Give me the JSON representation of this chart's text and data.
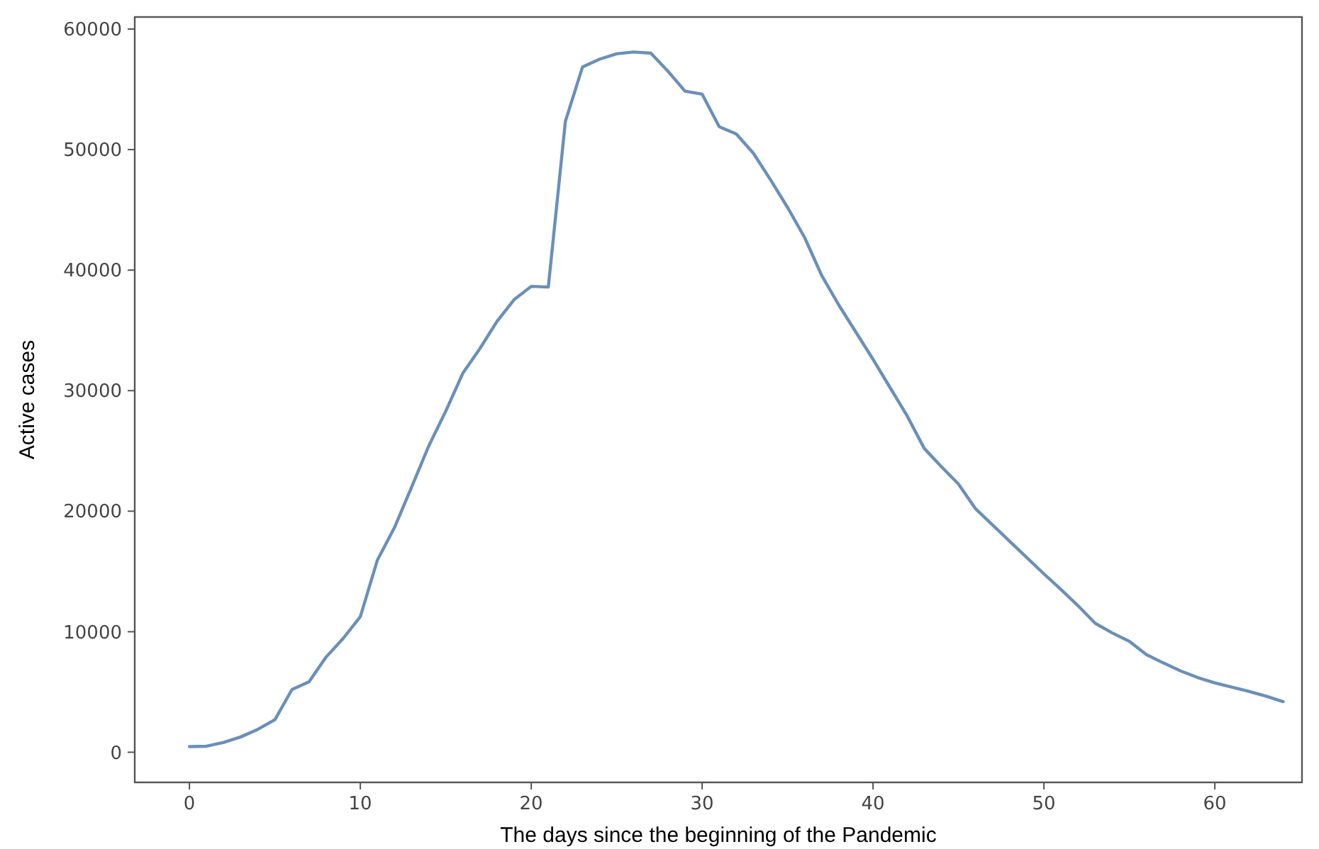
{
  "chart_data": {
    "type": "line",
    "xlabel": "The days since the beginning of the Pandemic",
    "ylabel": "Active cases",
    "x": [
      0,
      1,
      2,
      3,
      4,
      5,
      6,
      7,
      8,
      9,
      10,
      11,
      12,
      13,
      14,
      15,
      16,
      17,
      18,
      19,
      20,
      21,
      22,
      23,
      24,
      25,
      26,
      27,
      28,
      29,
      30,
      31,
      32,
      33,
      34,
      35,
      36,
      37,
      38,
      39,
      40,
      41,
      42,
      43,
      44,
      45,
      46,
      47,
      48,
      49,
      50,
      51,
      52,
      53,
      54,
      55,
      56,
      57,
      58,
      59,
      60,
      61,
      62,
      63,
      64
    ],
    "series": [
      {
        "color": "#6a8fba",
        "values": [
          470,
          500,
          820,
          1270,
          1900,
          2700,
          5200,
          5850,
          7900,
          9450,
          11250,
          15950,
          18650,
          22000,
          25400,
          28300,
          31450,
          33500,
          35750,
          37550,
          38650,
          38600,
          52350,
          56850,
          57500,
          57950,
          58100,
          58000,
          56500,
          54850,
          54600,
          51900,
          51300,
          49700,
          47500,
          45200,
          42700,
          39550,
          37100,
          34850,
          32600,
          30250,
          27900,
          25200,
          23700,
          22250,
          20200,
          18850,
          17500,
          16150,
          14800,
          13500,
          12150,
          10700,
          9900,
          9200,
          8100,
          7400,
          6750,
          6200,
          5750,
          5400,
          5050,
          4650,
          4200
        ]
      }
    ],
    "xlim": [
      -3.2,
      65.1
    ],
    "ylim": [
      -2500,
      61000
    ],
    "xticks": [
      0,
      10,
      20,
      30,
      40,
      50,
      60
    ],
    "yticks": [
      0,
      10000,
      20000,
      30000,
      40000,
      50000,
      60000
    ],
    "grid": false,
    "line_style": "solid"
  }
}
